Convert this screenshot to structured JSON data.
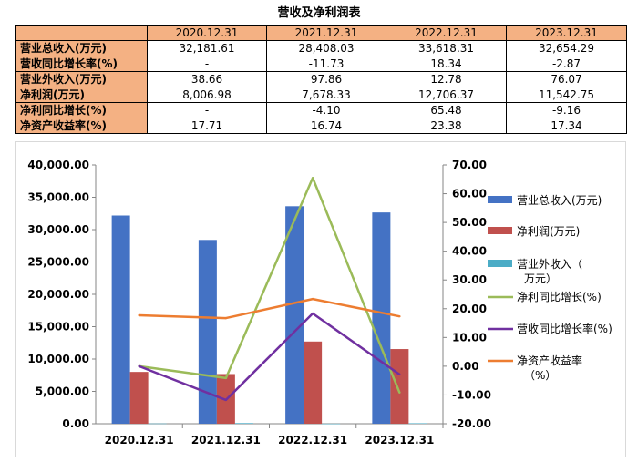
{
  "title": "营收及净利润表",
  "table": {
    "headers": [
      "",
      "2020.12.31",
      "2021.12.31",
      "2022.12.31",
      "2023.12.31"
    ],
    "rows": [
      {
        "label": "营业总收入(万元)",
        "values": [
          "32,181.61",
          "28,408.03",
          "33,618.31",
          "32,654.29"
        ]
      },
      {
        "label": "营收同比增长率(%)",
        "values": [
          "-",
          "-11.73",
          "18.34",
          "-2.87"
        ]
      },
      {
        "label": "营业外收入(万元)",
        "values": [
          "38.66",
          "97.86",
          "12.78",
          "76.07"
        ]
      },
      {
        "label": "净利润(万元)",
        "values": [
          "8,006.98",
          "7,678.33",
          "12,706.37",
          "11,542.75"
        ]
      },
      {
        "label": "净利同比增长(%)",
        "values": [
          "-",
          "-4.10",
          "65.48",
          "-9.16"
        ]
      },
      {
        "label": "净资产收益率(%)",
        "values": [
          "17.71",
          "16.74",
          "23.38",
          "17.34"
        ]
      }
    ]
  },
  "chart_data": {
    "type": "bar",
    "categories": [
      "2020.12.31",
      "2021.12.31",
      "2022.12.31",
      "2023.12.31"
    ],
    "left_axis": {
      "ylim": [
        0,
        40000
      ],
      "ticks": [
        "0.00",
        "5,000.00",
        "10,000.00",
        "15,000.00",
        "20,000.00",
        "25,000.00",
        "30,000.00",
        "35,000.00",
        "40,000.00"
      ]
    },
    "right_axis": {
      "ylim": [
        -20,
        70
      ],
      "ticks": [
        "-20.00",
        "-10.00",
        "0.00",
        "10.00",
        "20.00",
        "30.00",
        "40.00",
        "50.00",
        "60.00",
        "70.00"
      ]
    },
    "bar_series": [
      {
        "name": "营业总收入(万元)",
        "color": "#4472c4",
        "values": [
          32181.61,
          28408.03,
          33618.31,
          32654.29
        ]
      },
      {
        "name": "净利润(万元)",
        "color": "#c0504d",
        "values": [
          8006.98,
          7678.33,
          12706.37,
          11542.75
        ]
      },
      {
        "name": "营业外收入（万元）",
        "color": "#4bacc6",
        "values": [
          38.66,
          97.86,
          12.78,
          76.07
        ]
      }
    ],
    "line_series": [
      {
        "name": "净利同比增长(%)",
        "color": "#9bbb59",
        "values": [
          0,
          -4.1,
          65.48,
          -9.16
        ]
      },
      {
        "name": "营收同比增长率(%)",
        "color": "#7030a0",
        "values": [
          0,
          -11.73,
          18.34,
          -2.87
        ]
      },
      {
        "name": "净资产收益率（%）",
        "color": "#ed7d31",
        "values": [
          17.71,
          16.74,
          23.38,
          17.34
        ]
      }
    ],
    "legend_placement": "right",
    "grid": false
  }
}
